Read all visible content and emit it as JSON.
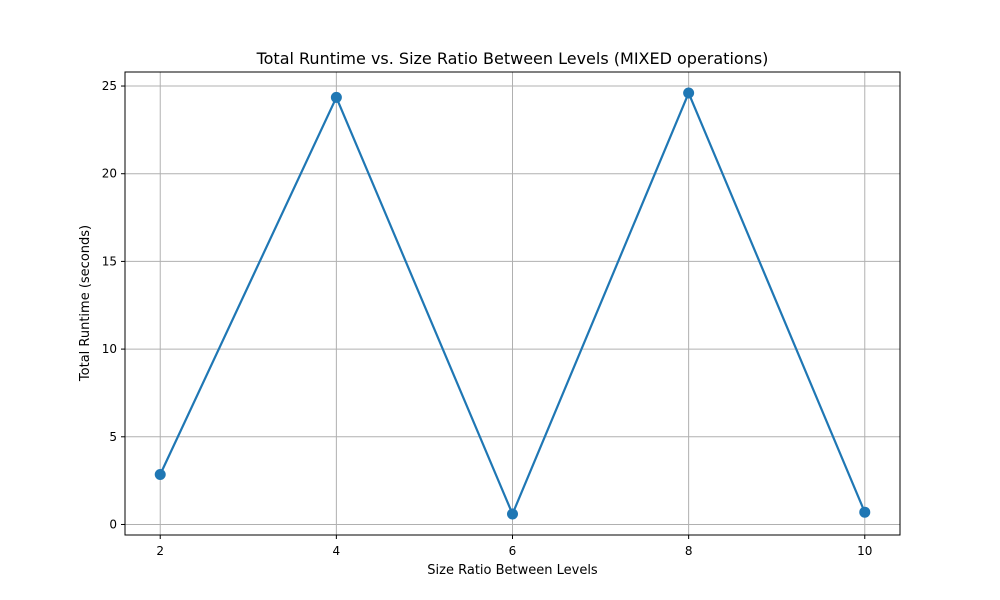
{
  "chart_data": {
    "type": "line",
    "title": "Total Runtime vs. Size Ratio Between Levels (MIXED operations)",
    "xlabel": "Size Ratio Between Levels",
    "ylabel": "Total Runtime (seconds)",
    "x": [
      2,
      4,
      6,
      8,
      10
    ],
    "series": [
      {
        "values": [
          2.85,
          24.35,
          0.6,
          24.6,
          0.7
        ]
      }
    ],
    "xticks": [
      "2",
      "4",
      "6",
      "8",
      "10"
    ],
    "yticks": [
      "0",
      "5",
      "10",
      "15",
      "20",
      "25"
    ],
    "xlim": [
      1.6,
      10.4
    ],
    "ylim": [
      -0.6,
      25.8
    ],
    "grid": true,
    "colors": {
      "line": "#1f77b4",
      "grid": "#b0b0b0",
      "axes": "#000000"
    }
  }
}
